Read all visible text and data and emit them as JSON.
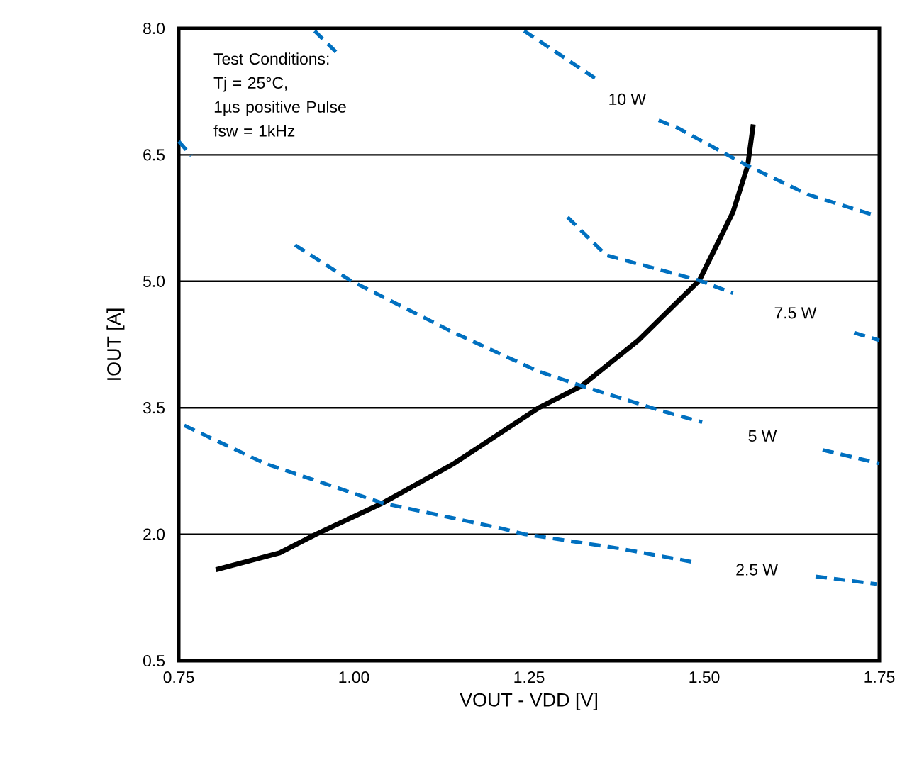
{
  "chart_data": {
    "type": "line",
    "xlabel": "VOUT - VDD [V]",
    "ylabel": "IOUT [A]",
    "xlim": [
      0.75,
      1.75
    ],
    "ylim": [
      0.5,
      8.0
    ],
    "xticks": [
      {
        "value": 0.75,
        "label": "0.75"
      },
      {
        "value": 1.0,
        "label": "1.00"
      },
      {
        "value": 1.25,
        "label": "1.25"
      },
      {
        "value": 1.5,
        "label": "1.50"
      },
      {
        "value": 1.75,
        "label": "1.75"
      }
    ],
    "yticks": [
      {
        "value": 0.5,
        "label": "0.5"
      },
      {
        "value": 2.0,
        "label": "2.0"
      },
      {
        "value": 3.5,
        "label": "3.5"
      },
      {
        "value": 5.0,
        "label": "5.0"
      },
      {
        "value": 6.5,
        "label": "6.5"
      },
      {
        "value": 8.0,
        "label": "8.0"
      }
    ],
    "grid": "y",
    "annotations": [
      "Test Conditions:",
      "Tj = 25°C,",
      "1µs positive Pulse",
      "fsw = 1kHz"
    ],
    "series": [
      {
        "color": "#000000",
        "line_style": "solid",
        "x": [
          0.803,
          0.894,
          0.946,
          1.041,
          1.143,
          1.264,
          1.325,
          1.406,
          1.493,
          1.541,
          1.562,
          1.57
        ],
        "values": [
          1.58,
          1.78,
          2.0,
          2.37,
          2.84,
          3.5,
          3.76,
          4.3,
          5.01,
          5.82,
          6.37,
          6.86
        ]
      },
      {
        "name": "10 W",
        "color": "#0070c0",
        "line_style": "dashed",
        "x": [
          1.243,
          1.29,
          1.344,
          1.39,
          1.435,
          1.462,
          1.562,
          1.648,
          1.744
        ],
        "values": [
          7.97,
          7.71,
          7.41,
          null,
          6.91,
          6.82,
          6.37,
          6.03,
          5.78
        ]
      },
      {
        "name": "7.5 W",
        "color": "#0070c0",
        "line_style": "dashed",
        "x": [
          0.944,
          0.977,
          1.14,
          1.305,
          1.36,
          1.493,
          1.541,
          1.63,
          1.714,
          1.75
        ],
        "values": [
          7.97,
          7.7,
          null,
          5.76,
          5.31,
          5.01,
          4.86,
          null,
          4.39,
          4.3
        ]
      },
      {
        "name": "5 W",
        "color": "#0070c0",
        "line_style": "dashed",
        "x": [
          0.75,
          0.768,
          0.84,
          0.916,
          0.995,
          1.143,
          1.264,
          1.325,
          1.44,
          1.497,
          1.583,
          1.669,
          1.75
        ],
        "values": [
          6.66,
          6.49,
          null,
          5.43,
          5.01,
          4.39,
          3.93,
          3.76,
          3.46,
          3.33,
          null,
          3.0,
          2.84
        ]
      },
      {
        "name": "2.5 W",
        "color": "#0070c0",
        "line_style": "dashed",
        "x": [
          0.758,
          0.873,
          1.041,
          1.21,
          1.244,
          1.38,
          1.491,
          1.575,
          1.659,
          1.746
        ],
        "values": [
          3.29,
          2.84,
          2.37,
          2.07,
          2.0,
          1.83,
          1.66,
          null,
          1.5,
          1.41
        ]
      }
    ]
  }
}
